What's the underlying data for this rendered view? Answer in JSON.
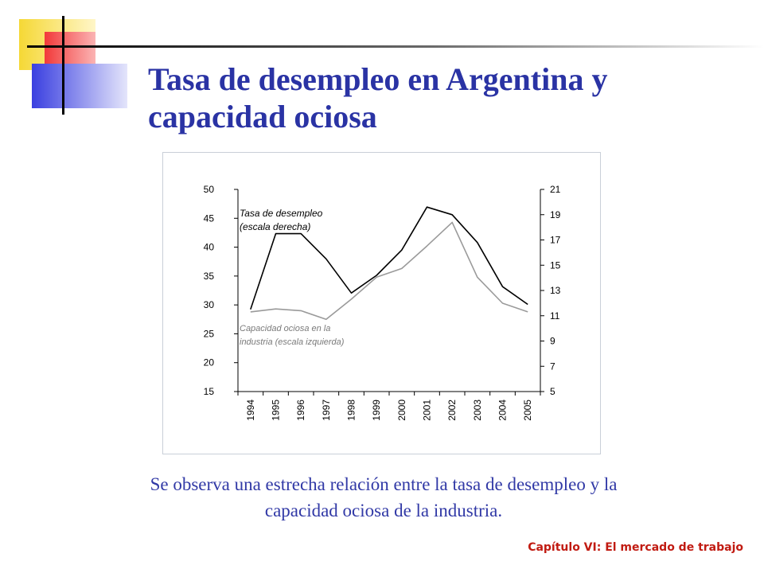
{
  "slide": {
    "title_line1": "Tasa de desempleo en Argentina y",
    "title_line2": "capacidad ociosa",
    "caption_line1": "Se observa una estrecha relación entre la tasa de desempleo y la",
    "caption_line2": "capacidad ociosa de la industria.",
    "footer": "Capítulo VI: El mercado de trabajo"
  },
  "colors": {
    "title": "#2a33a4",
    "caption": "#3139a6",
    "footer": "#c11b12",
    "desempleo_line": "#000000",
    "capacidad_line": "#9a9a9a",
    "deco_yellow": "#f5d835",
    "deco_red": "#f23a3a",
    "deco_blue": "#3a3fe0",
    "deco_line": "#000000"
  },
  "chart_data": {
    "type": "line",
    "categories": [
      "1994",
      "1995",
      "1996",
      "1997",
      "1998",
      "1999",
      "2000",
      "2001",
      "2002",
      "2003",
      "2004",
      "2005"
    ],
    "left_axis": {
      "min": 15,
      "max": 50,
      "ticks": [
        "50",
        "45",
        "40",
        "35",
        "30",
        "25",
        "20",
        "15"
      ]
    },
    "right_axis": {
      "min": 5,
      "max": 21,
      "ticks": [
        "21",
        "19",
        "17",
        "15",
        "13",
        "11",
        "9",
        "7",
        "5"
      ]
    },
    "series": [
      {
        "name_line1": "Tasa de desempleo",
        "name_line2": "(escala derecha)",
        "axis": "right",
        "values": [
          11.5,
          17.5,
          17.5,
          15.5,
          12.8,
          14.2,
          16.2,
          19.6,
          19.0,
          16.8,
          13.3,
          11.9
        ]
      },
      {
        "name_line1": "Capacidad ociosa en la",
        "name_line2": "industria (escala izquierda)",
        "axis": "left",
        "values": [
          28.8,
          29.3,
          29.0,
          27.5,
          31.0,
          34.8,
          36.3,
          40.2,
          44.3,
          34.8,
          30.3,
          28.8
        ]
      }
    ],
    "grid": false
  }
}
